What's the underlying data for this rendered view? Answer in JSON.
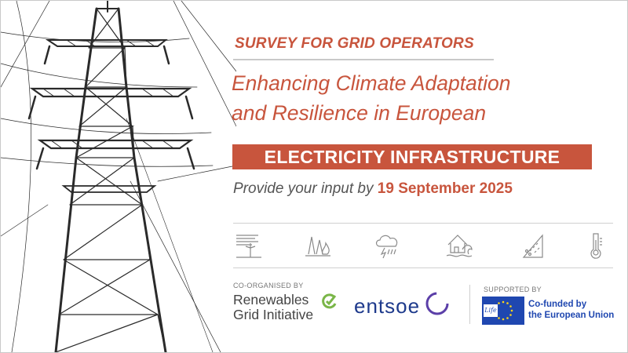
{
  "header": {
    "survey_label": "SURVEY FOR GRID OPERATORS",
    "headline_line1": "Enhancing Climate Adaptation",
    "headline_line2": "and Resilience in European",
    "highlight": "ELECTRICITY INFRASTRUCTURE"
  },
  "deadline": {
    "prefix": "Provide your input by",
    "date": "19 September 2025"
  },
  "hazard_icons": [
    "heat-wind-icon",
    "wildfire-icon",
    "storm-icon",
    "flood-icon",
    "landslide-icon",
    "thermometer-icon"
  ],
  "organisers": {
    "label": "CO-ORGANISED BY",
    "rgi_line1": "Renewables",
    "rgi_line2": "Grid Initiative",
    "entsoe": "entsoe"
  },
  "support": {
    "label": "SUPPORTED BY",
    "life_logo_text": "Life",
    "eu_line1": "Co-funded by",
    "eu_line2": "the European Union"
  },
  "colors": {
    "accent": "#c8553d",
    "text_grey": "#555555",
    "eu_blue": "#1f47b0",
    "entsoe_blue": "#1e3a8c",
    "rgi_green": "#7ab648"
  }
}
